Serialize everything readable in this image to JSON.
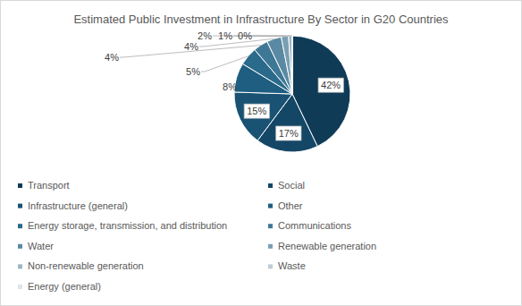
{
  "chart_data": {
    "type": "pie",
    "title": "Estimated Public Investment in Infrastructure By Sector in G20 Countries",
    "categories": [
      "Transport",
      "Social",
      "Infrastructure (general)",
      "Other",
      "Energy storage, transmission, and distribution",
      "Communications",
      "Water",
      "Renewable generation",
      "Non-renewable generation",
      "Waste",
      "Energy (general)"
    ],
    "values": [
      42,
      17,
      15,
      8,
      5,
      4,
      4,
      2,
      1,
      0,
      0
    ],
    "value_labels": [
      "42%",
      "17%",
      "15%",
      "8%",
      "5%",
      "4%",
      "4%",
      "2%",
      "1%",
      "0%",
      null
    ],
    "colors": [
      "#0f3b57",
      "#144766",
      "#195273",
      "#1f5e80",
      "#2a6a8a",
      "#3f7896",
      "#5a8aa3",
      "#7a9fb3",
      "#9db6c4",
      "#bfcdd6",
      "#dde4e9"
    ],
    "data_labels": true,
    "legend": "bottom"
  }
}
